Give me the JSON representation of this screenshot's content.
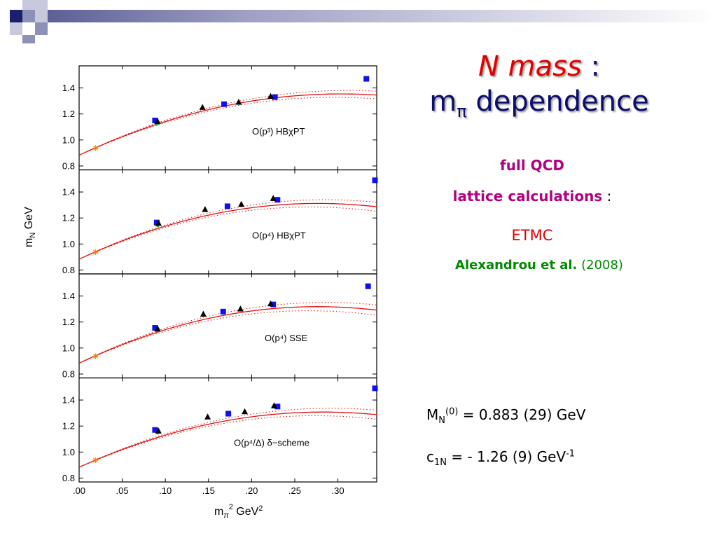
{
  "title": {
    "line1_main": "N mass",
    "line1_sep": " :",
    "line2_m": "m",
    "line2_sub": "π",
    "line2_rest": " dependence"
  },
  "info": {
    "full_qcd": "full QCD",
    "lattice": "lattice calculations",
    "lattice_colon": " :",
    "etmc": "ETMC",
    "authors": "Alexandrou et al.",
    "year": " (2008)"
  },
  "results": {
    "mn_M": "M",
    "mn_sub": "N",
    "mn_sup": "(0)",
    "mn_rest": " = 0.883 (29) GeV",
    "c1n_c": "c",
    "c1n_sub": "1N",
    "c1n_rest": " = - 1.26 (9) GeV",
    "c1n_sup": "-1"
  },
  "colors": {
    "title_red": "#e00000",
    "title_navy": "#0d0d6b",
    "magenta": "#b4007f",
    "etmc_red": "#e00000",
    "green": "#008a00",
    "fit_line": "#e01010",
    "square": "#1010ee",
    "triangle": "#000000",
    "star": "#ff7f00",
    "circle": "#00aa44",
    "deco_navy": "#1b1f6e",
    "deco_slate": "#8e90b8",
    "deco_light": "#c8c9dd"
  },
  "chart_data": {
    "type": "scatter",
    "xlabel": "m_π^2 GeV^2",
    "ylabel": "m_N GeV",
    "xlim": [
      0.0,
      0.345
    ],
    "ylim": [
      0.77,
      1.57
    ],
    "x_ticks": [
      0.0,
      0.05,
      0.1,
      0.15,
      0.2,
      0.25,
      0.3
    ],
    "x_tick_labels": [
      ".00",
      ".05",
      ".10",
      ".15",
      ".20",
      ".25",
      ".30"
    ],
    "y_ticks": [
      0.8,
      1.0,
      1.2,
      1.4
    ],
    "y_tick_labels": [
      "0.8",
      "1.0",
      "1.2",
      "1.4"
    ],
    "panels": [
      {
        "label": "O(p³)  HBχPT",
        "fit": {
          "a": 0.883,
          "b": 3.1,
          "c": 5.1,
          "band": 0.03
        },
        "squares": [
          [
            0.088,
            1.15
          ],
          [
            0.168,
            1.275
          ],
          [
            0.227,
            1.33
          ],
          [
            0.333,
            1.47
          ]
        ],
        "triangles": [
          [
            0.091,
            1.142
          ],
          [
            0.143,
            1.25
          ],
          [
            0.185,
            1.29
          ],
          [
            0.222,
            1.335
          ]
        ],
        "circles": [
          [
            0.09,
            1.13
          ]
        ],
        "stars": [
          [
            0.019,
            0.937
          ]
        ]
      },
      {
        "label": "O(p⁴)  HBχPT",
        "fit": {
          "a": 0.883,
          "b": 3.1,
          "c": 5.6,
          "band": 0.035
        },
        "squares": [
          [
            0.09,
            1.165
          ],
          [
            0.172,
            1.29
          ],
          [
            0.23,
            1.34
          ],
          [
            0.343,
            1.49
          ]
        ],
        "triangles": [
          [
            0.092,
            1.16
          ],
          [
            0.146,
            1.265
          ],
          [
            0.188,
            1.305
          ],
          [
            0.225,
            1.35
          ]
        ],
        "circles": [
          [
            0.091,
            1.15
          ]
        ],
        "stars": [
          [
            0.019,
            0.937
          ]
        ]
      },
      {
        "label": "O(p⁴)  SSE",
        "fit": {
          "a": 0.883,
          "b": 3.15,
          "c": 5.7,
          "band": 0.04
        },
        "squares": [
          [
            0.088,
            1.155
          ],
          [
            0.167,
            1.28
          ],
          [
            0.225,
            1.335
          ],
          [
            0.335,
            1.475
          ]
        ],
        "triangles": [
          [
            0.091,
            1.148
          ],
          [
            0.144,
            1.26
          ],
          [
            0.187,
            1.3
          ],
          [
            0.222,
            1.34
          ]
        ],
        "circles": [
          [
            0.09,
            1.14
          ]
        ],
        "stars": [
          [
            0.019,
            0.937
          ]
        ]
      },
      {
        "label": "O(p⁴/Δ)  δ−scheme",
        "fit": {
          "a": 0.883,
          "b": 3.0,
          "c": 5.3,
          "band": 0.035
        },
        "squares": [
          [
            0.088,
            1.17
          ],
          [
            0.173,
            1.295
          ],
          [
            0.23,
            1.35
          ],
          [
            0.343,
            1.49
          ]
        ],
        "triangles": [
          [
            0.092,
            1.162
          ],
          [
            0.149,
            1.27
          ],
          [
            0.192,
            1.31
          ],
          [
            0.226,
            1.355
          ]
        ],
        "circles": [
          [
            0.091,
            1.155
          ]
        ],
        "stars": [
          [
            0.019,
            0.937
          ]
        ]
      }
    ]
  }
}
